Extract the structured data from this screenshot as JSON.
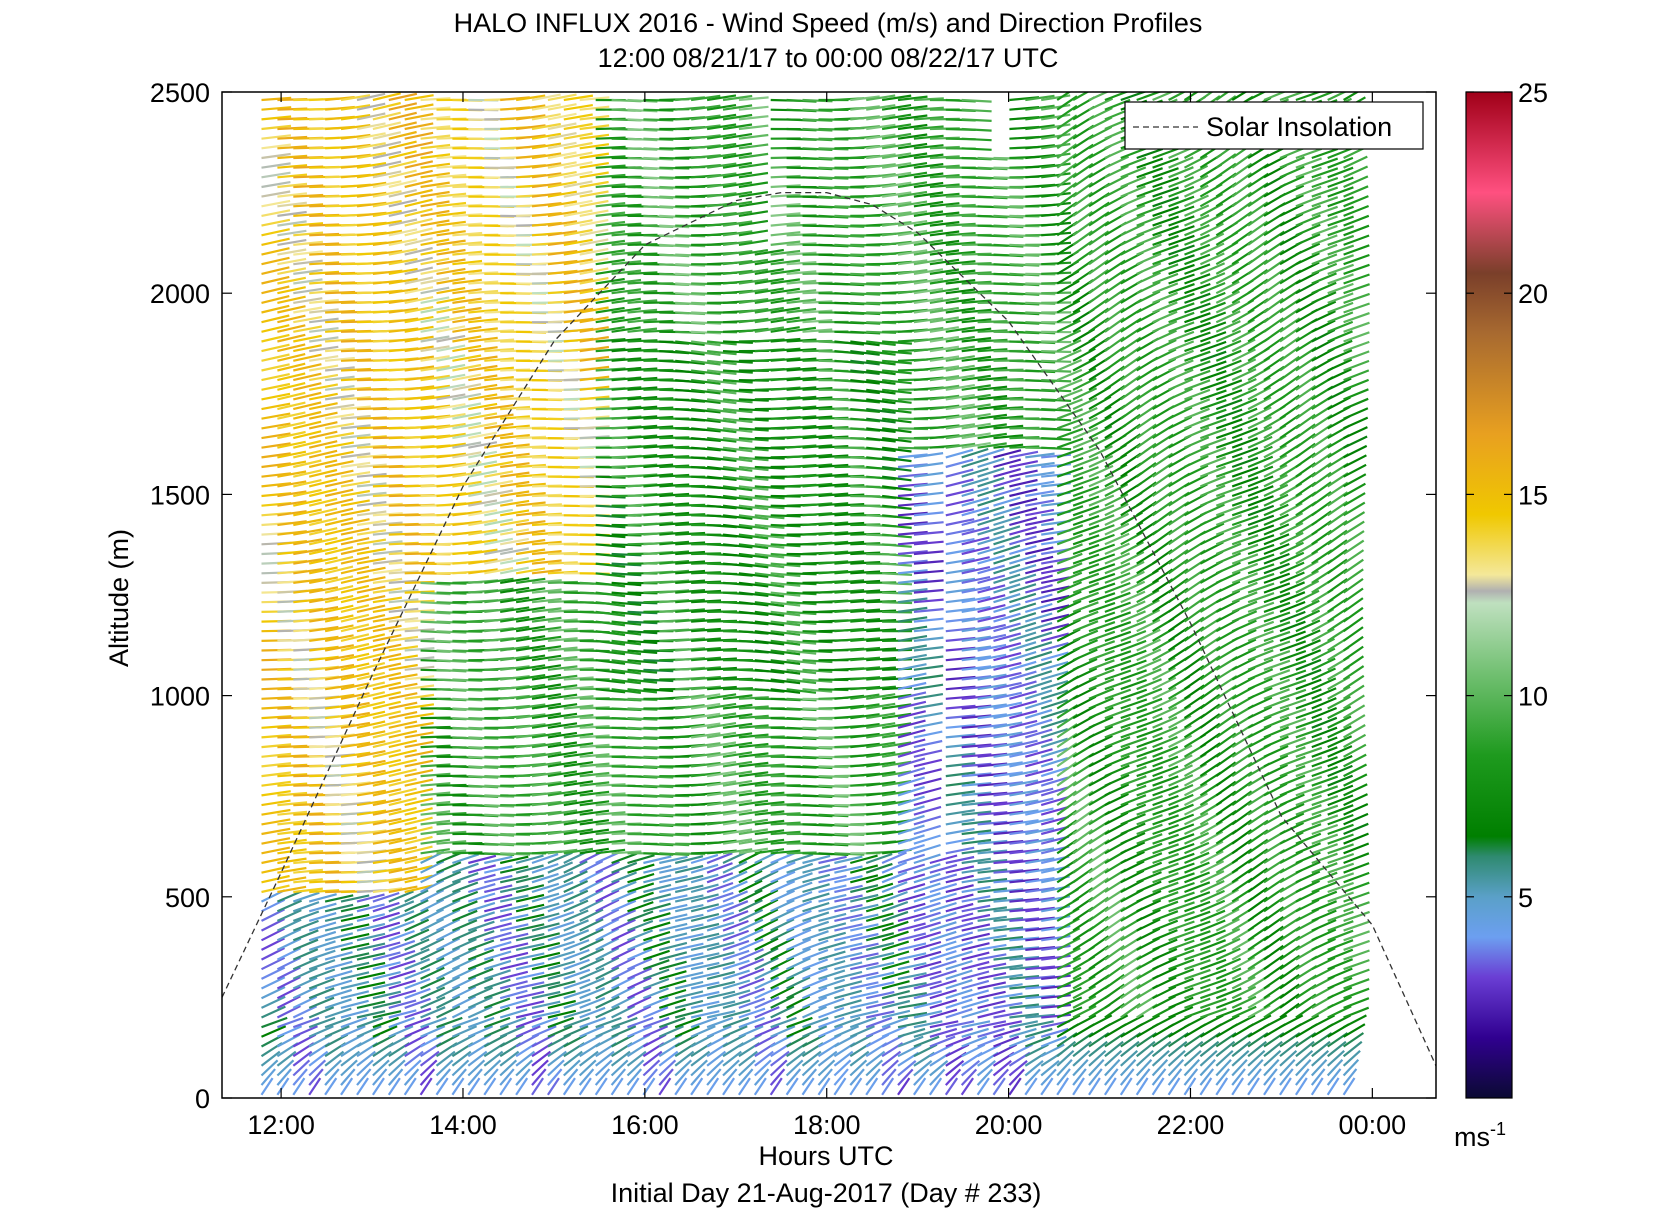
{
  "chart_data": {
    "type": "quiver",
    "title": "HALO INFLUX 2016 - Wind Speed (m/s) and Direction Profiles",
    "subtitle": "12:00 08/21/17 to 00:00 08/22/17  UTC",
    "xlabel": "Hours UTC",
    "footer": "Initial Day 21-Aug-2017 (Day # 233)",
    "ylabel": "Altitude (m)",
    "xlim": [
      11.35,
      24.7
    ],
    "ylim": [
      0,
      2500
    ],
    "x_ticks": [
      {
        "value": 12,
        "label": "12:00"
      },
      {
        "value": 14,
        "label": "14:00"
      },
      {
        "value": 16,
        "label": "16:00"
      },
      {
        "value": 18,
        "label": "18:00"
      },
      {
        "value": 20,
        "label": "20:00"
      },
      {
        "value": 22,
        "label": "22:00"
      },
      {
        "value": 24,
        "label": "00:00"
      }
    ],
    "y_ticks": [
      {
        "value": 0,
        "label": "0"
      },
      {
        "value": 500,
        "label": "500"
      },
      {
        "value": 1000,
        "label": "1000"
      },
      {
        "value": 1500,
        "label": "1500"
      },
      {
        "value": 2000,
        "label": "2000"
      },
      {
        "value": 2500,
        "label": "2500"
      }
    ],
    "grid": false,
    "legend": {
      "position": "top-right",
      "entries": [
        "Solar Insolation"
      ]
    },
    "solar_insolation": {
      "style": "dashed",
      "color": "#333333",
      "x": [
        11.35,
        12,
        13,
        14,
        15,
        16,
        17,
        17.5,
        18,
        18.5,
        19,
        20,
        21,
        22,
        23,
        24,
        24.7
      ],
      "y": [
        250,
        560,
        1050,
        1520,
        1880,
        2120,
        2230,
        2250,
        2250,
        2220,
        2150,
        1930,
        1610,
        1180,
        700,
        430,
        80
      ]
    },
    "colorbar": {
      "label": "ms-1",
      "label_base": "ms",
      "label_sup": "-1",
      "min": 0,
      "max": 25,
      "ticks": [
        {
          "value": 5,
          "label": "5"
        },
        {
          "value": 10,
          "label": "10"
        },
        {
          "value": 15,
          "label": "15"
        },
        {
          "value": 20,
          "label": "20"
        },
        {
          "value": 25,
          "label": "25"
        }
      ],
      "stops": [
        {
          "v": 0,
          "c": "#0b0a33"
        },
        {
          "v": 1.5,
          "c": "#300090"
        },
        {
          "v": 3,
          "c": "#6a3ed4"
        },
        {
          "v": 4,
          "c": "#6c9ff0"
        },
        {
          "v": 5,
          "c": "#5aa0c8"
        },
        {
          "v": 6,
          "c": "#2f8a70"
        },
        {
          "v": 6.5,
          "c": "#007f00"
        },
        {
          "v": 8.5,
          "c": "#1e9a1e"
        },
        {
          "v": 10.5,
          "c": "#6fbf6f"
        },
        {
          "v": 12.3,
          "c": "#bfe0bf"
        },
        {
          "v": 12.6,
          "c": "#b0b0b0"
        },
        {
          "v": 13,
          "c": "#f4e89a"
        },
        {
          "v": 14.5,
          "c": "#f0c800"
        },
        {
          "v": 16.5,
          "c": "#e8a020"
        },
        {
          "v": 19,
          "c": "#a86a30"
        },
        {
          "v": 20.5,
          "c": "#7a3f2a"
        },
        {
          "v": 22.5,
          "c": "#ff5080"
        },
        {
          "v": 25,
          "c": "#a00018"
        }
      ]
    },
    "wind_field": {
      "hour_start": 11.85,
      "hour_step": 0.175,
      "hour_end": 23.85,
      "alt_step": 24,
      "alt_max": 2480,
      "gaps": [
        {
          "h": [
            19.1,
            19.35
          ],
          "alt": [
            600,
            1600
          ]
        },
        {
          "h": [
            20.1,
            20.25
          ],
          "alt": [
            550,
            1300
          ]
        },
        {
          "h": [
            17.25,
            17.45
          ],
          "alt": [
            2100,
            2500
          ]
        },
        {
          "h": [
            19.6,
            19.95
          ],
          "alt": [
            2350,
            2500
          ]
        }
      ],
      "regimes": [
        {
          "h": [
            11.85,
            13.5
          ],
          "alt": [
            500,
            2500
          ],
          "speed": 14.5,
          "dir_deg": 12
        },
        {
          "h": [
            13.5,
            15.5
          ],
          "alt": [
            1300,
            2500
          ],
          "speed": 14,
          "dir_deg": 8
        },
        {
          "h": [
            15.5,
            18.8
          ],
          "alt": [
            1000,
            1900
          ],
          "speed": 8,
          "dir_deg": -2
        },
        {
          "h": [
            18.8,
            20.6
          ],
          "alt": [
            0,
            1600
          ],
          "speed": 4,
          "dir_deg": 18
        },
        {
          "h": [
            20.6,
            23.85
          ],
          "alt": [
            0,
            2500
          ],
          "speed": 8.5,
          "dir_deg": 40
        },
        {
          "h": [
            11.85,
            20.6
          ],
          "alt": [
            0,
            600
          ],
          "speed": 5,
          "dir_deg": 30
        }
      ]
    }
  }
}
